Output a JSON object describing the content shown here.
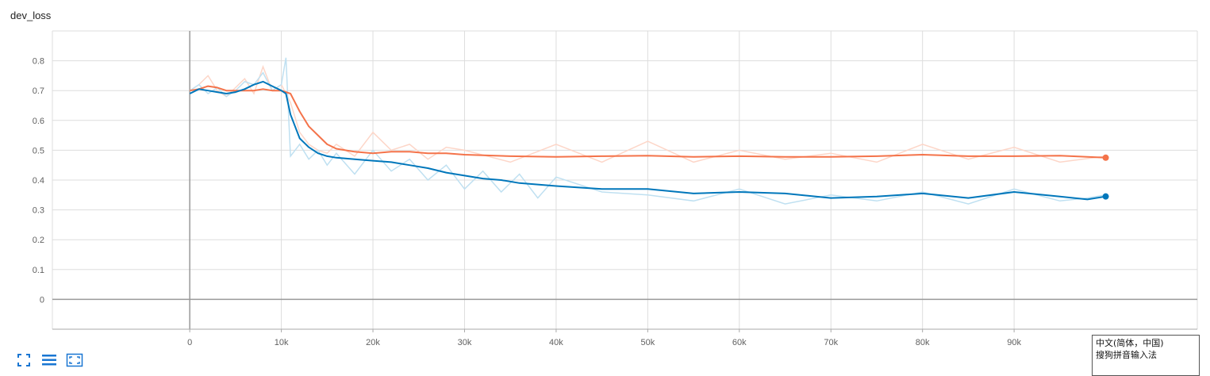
{
  "chart_data": {
    "type": "line",
    "title": "dev_loss",
    "xlabel": "",
    "ylabel": "",
    "xlim": [
      -15000,
      110000
    ],
    "ylim": [
      -0.1,
      0.9
    ],
    "x_ticks": [
      0,
      10000,
      20000,
      30000,
      40000,
      50000,
      60000,
      70000,
      80000,
      90000
    ],
    "x_tick_labels": [
      "0",
      "10k",
      "20k",
      "30k",
      "40k",
      "50k",
      "60k",
      "70k",
      "80k",
      "90k"
    ],
    "y_ticks": [
      0,
      0.1,
      0.2,
      0.3,
      0.4,
      0.5,
      0.6,
      0.7,
      0.8
    ],
    "y_tick_labels": [
      "0",
      "0.1",
      "0.2",
      "0.3",
      "0.4",
      "0.5",
      "0.6",
      "0.7",
      "0.8"
    ],
    "grid": true,
    "series": [
      {
        "color": "#f4734a",
        "raw_color": "#fdd6c8",
        "x": [
          0,
          1000,
          2000,
          3000,
          4000,
          5000,
          6000,
          7000,
          8000,
          9000,
          10000,
          11000,
          12000,
          13000,
          14000,
          15000,
          16000,
          18000,
          20000,
          22000,
          24000,
          26000,
          28000,
          30000,
          35000,
          40000,
          45000,
          50000,
          55000,
          60000,
          65000,
          70000,
          75000,
          80000,
          85000,
          90000,
          95000,
          100000
        ],
        "smoothed": [
          0.7,
          0.705,
          0.715,
          0.71,
          0.7,
          0.7,
          0.7,
          0.7,
          0.705,
          0.7,
          0.7,
          0.69,
          0.63,
          0.58,
          0.55,
          0.52,
          0.505,
          0.495,
          0.49,
          0.495,
          0.495,
          0.49,
          0.49,
          0.485,
          0.48,
          0.478,
          0.48,
          0.482,
          0.478,
          0.48,
          0.478,
          0.478,
          0.48,
          0.485,
          0.48,
          0.48,
          0.482,
          0.475
        ],
        "raw": [
          0.7,
          0.72,
          0.75,
          0.7,
          0.68,
          0.71,
          0.74,
          0.69,
          0.78,
          0.7,
          0.72,
          0.66,
          0.56,
          0.52,
          0.5,
          0.49,
          0.52,
          0.48,
          0.56,
          0.5,
          0.52,
          0.47,
          0.51,
          0.5,
          0.46,
          0.52,
          0.46,
          0.53,
          0.46,
          0.5,
          0.47,
          0.49,
          0.46,
          0.52,
          0.47,
          0.51,
          0.46,
          0.48
        ]
      },
      {
        "color": "#0077bb",
        "raw_color": "#bfe0f1",
        "x": [
          0,
          1000,
          2000,
          3000,
          4000,
          5000,
          6000,
          7000,
          8000,
          9000,
          10000,
          10500,
          11000,
          12000,
          13000,
          14000,
          15000,
          16000,
          18000,
          20000,
          22000,
          24000,
          26000,
          28000,
          30000,
          32000,
          34000,
          36000,
          38000,
          40000,
          45000,
          50000,
          55000,
          60000,
          65000,
          70000,
          75000,
          80000,
          85000,
          90000,
          95000,
          98000,
          100000
        ],
        "smoothed": [
          0.69,
          0.705,
          0.7,
          0.695,
          0.69,
          0.695,
          0.705,
          0.72,
          0.73,
          0.715,
          0.7,
          0.69,
          0.62,
          0.54,
          0.51,
          0.49,
          0.48,
          0.475,
          0.47,
          0.465,
          0.46,
          0.45,
          0.44,
          0.425,
          0.415,
          0.405,
          0.4,
          0.39,
          0.385,
          0.38,
          0.37,
          0.37,
          0.355,
          0.36,
          0.355,
          0.34,
          0.345,
          0.355,
          0.34,
          0.36,
          0.345,
          0.335,
          0.345
        ],
        "raw": [
          0.7,
          0.72,
          0.69,
          0.71,
          0.68,
          0.7,
          0.73,
          0.72,
          0.76,
          0.7,
          0.72,
          0.81,
          0.48,
          0.52,
          0.47,
          0.5,
          0.45,
          0.49,
          0.42,
          0.5,
          0.43,
          0.47,
          0.4,
          0.45,
          0.37,
          0.43,
          0.36,
          0.42,
          0.34,
          0.41,
          0.36,
          0.35,
          0.33,
          0.37,
          0.32,
          0.35,
          0.33,
          0.36,
          0.32,
          0.37,
          0.33,
          0.34,
          0.35
        ]
      }
    ]
  },
  "toolbar": {
    "icons": [
      "expand-icon",
      "list-icon",
      "fit-icon"
    ],
    "accent": "#1976d2"
  },
  "ime": {
    "line1": "中文(简体，中国)",
    "line2": "搜狗拼音输入法"
  }
}
